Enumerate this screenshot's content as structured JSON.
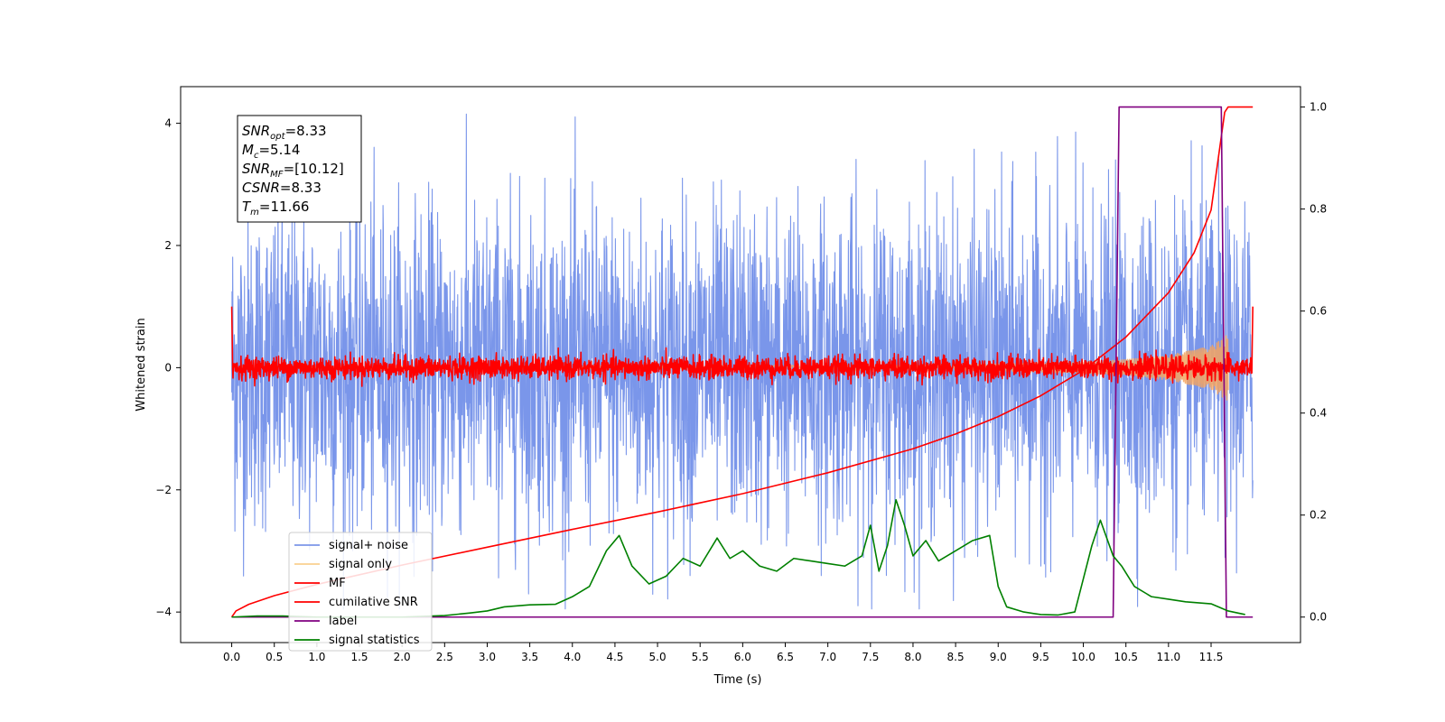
{
  "chart_data": {
    "type": "line",
    "title": "",
    "xlabel": "Time (s)",
    "ylabel": "Whitened strain",
    "ylabel_right": "",
    "xlim": [
      -0.6,
      12.55
    ],
    "ylim": [
      -4.5,
      4.6
    ],
    "ylim_right": [
      -0.05,
      1.04
    ],
    "xticks": [
      0.0,
      0.5,
      1.0,
      1.5,
      2.0,
      2.5,
      3.0,
      3.5,
      4.0,
      4.5,
      5.0,
      5.5,
      6.0,
      6.5,
      7.0,
      7.5,
      8.0,
      8.5,
      9.0,
      9.5,
      10.0,
      10.5,
      11.0,
      11.5
    ],
    "xtick_labels": [
      "0.0",
      "0.5",
      "1.0",
      "1.5",
      "2.0",
      "2.5",
      "3.0",
      "3.5",
      "4.0",
      "4.5",
      "5.0",
      "5.5",
      "6.0",
      "6.5",
      "7.0",
      "7.5",
      "8.0",
      "8.5",
      "9.0",
      "9.5",
      "10.0",
      "10.5",
      "11.0",
      "11.5"
    ],
    "yticks": [
      -4,
      -2,
      0,
      2,
      4
    ],
    "ytick_labels": [
      "−4",
      "−2",
      "0",
      "2",
      "4"
    ],
    "yticks_right": [
      0.0,
      0.2,
      0.4,
      0.6,
      0.8,
      1.0
    ],
    "ytick_labels_right": [
      "0.0",
      "0.2",
      "0.4",
      "0.6",
      "0.8",
      "1.0"
    ],
    "grid": false,
    "legend_position": "lower-left",
    "annotation": {
      "lines": [
        {
          "sym": "SNR",
          "sub": "opt",
          "rest": "=8.33"
        },
        {
          "sym": "M",
          "sub": "c",
          "rest": "=5.14"
        },
        {
          "sym": "SNR",
          "sub": "MF",
          "rest": "=[10.12]"
        },
        {
          "sym": "CSNR",
          "sub": "",
          "rest": "=8.33"
        },
        {
          "sym": "T",
          "sub": "m",
          "rest": "=11.66"
        }
      ]
    },
    "series": [
      {
        "name": "signal+ noise",
        "color": "#4169e1",
        "axis": "left",
        "kind": "noise",
        "x_range": [
          0.0,
          11.99
        ],
        "amplitude_std": 1.3,
        "peak_range": [
          -3.95,
          4.15
        ]
      },
      {
        "name": "signal only",
        "color": "#f4a460",
        "axis": "left",
        "kind": "chirp",
        "x_range": [
          0.0,
          11.7
        ],
        "envelope": {
          "x": [
            0,
            8.0,
            9.0,
            10.0,
            10.5,
            11.0,
            11.5,
            11.7
          ],
          "y": [
            0.02,
            0.04,
            0.06,
            0.09,
            0.13,
            0.2,
            0.35,
            0.55
          ]
        }
      },
      {
        "name": "MF",
        "color": "#ff0000",
        "axis": "left",
        "kind": "noise",
        "x_range": [
          0.0,
          11.99
        ],
        "amplitude_std": 0.09,
        "edges": {
          "start": 1.0,
          "end": 1.0
        }
      },
      {
        "name": "cumilative SNR",
        "color": "#ff0000",
        "axis": "right",
        "kind": "line",
        "x": [
          0.0,
          0.05,
          0.2,
          0.5,
          1.0,
          1.5,
          2.0,
          3.0,
          4.0,
          5.0,
          6.0,
          7.0,
          8.0,
          8.5,
          9.0,
          9.5,
          10.0,
          10.5,
          11.0,
          11.3,
          11.5,
          11.66,
          11.7,
          11.99
        ],
        "y": [
          0.0,
          0.012,
          0.025,
          0.042,
          0.064,
          0.083,
          0.102,
          0.137,
          0.172,
          0.206,
          0.242,
          0.283,
          0.33,
          0.359,
          0.393,
          0.434,
          0.484,
          0.549,
          0.636,
          0.714,
          0.798,
          0.99,
          1.0,
          1.0
        ]
      },
      {
        "name": "label",
        "color": "#800080",
        "axis": "right",
        "kind": "line",
        "x": [
          0.0,
          10.35,
          10.42,
          11.62,
          11.68,
          11.99
        ],
        "y": [
          0.0,
          0.0,
          1.0,
          1.0,
          0.0,
          0.0
        ]
      },
      {
        "name": "signal statistics",
        "color": "#008000",
        "axis": "right",
        "kind": "line",
        "x": [
          0.0,
          0.3,
          0.6,
          1.0,
          1.5,
          2.0,
          2.5,
          2.8,
          3.0,
          3.2,
          3.5,
          3.8,
          4.0,
          4.2,
          4.4,
          4.55,
          4.7,
          4.9,
          5.1,
          5.3,
          5.5,
          5.7,
          5.85,
          6.0,
          6.2,
          6.4,
          6.6,
          6.8,
          7.0,
          7.2,
          7.4,
          7.5,
          7.6,
          7.7,
          7.8,
          7.9,
          8.0,
          8.15,
          8.3,
          8.5,
          8.7,
          8.9,
          9.0,
          9.1,
          9.3,
          9.5,
          9.7,
          9.9,
          10.1,
          10.2,
          10.35,
          10.45,
          10.6,
          10.8,
          11.0,
          11.2,
          11.5,
          11.7,
          11.9
        ],
        "y": [
          0.0,
          0.002,
          0.002,
          0.0,
          0.0,
          0.0,
          0.003,
          0.008,
          0.012,
          0.02,
          0.024,
          0.025,
          0.04,
          0.06,
          0.13,
          0.16,
          0.1,
          0.065,
          0.08,
          0.115,
          0.1,
          0.155,
          0.115,
          0.13,
          0.1,
          0.09,
          0.115,
          0.11,
          0.105,
          0.1,
          0.12,
          0.18,
          0.09,
          0.14,
          0.23,
          0.18,
          0.12,
          0.15,
          0.11,
          0.13,
          0.15,
          0.16,
          0.06,
          0.02,
          0.01,
          0.005,
          0.004,
          0.01,
          0.14,
          0.19,
          0.12,
          0.1,
          0.06,
          0.04,
          0.035,
          0.03,
          0.026,
          0.012,
          0.005
        ]
      }
    ]
  }
}
